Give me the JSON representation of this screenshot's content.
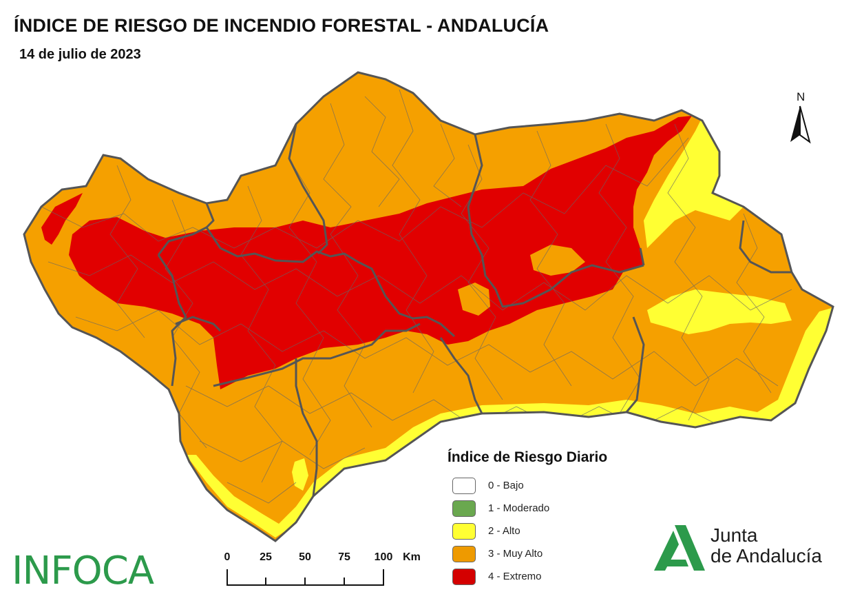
{
  "title": "ÍNDICE DE RIESGO DE INCENDIO FORESTAL - ANDALUCÍA",
  "date": "14 de julio de 2023",
  "north": {
    "letter": "N",
    "icon": "north-arrow-icon"
  },
  "legend": {
    "title": "Índice de Riesgo Diario",
    "items": [
      {
        "label": "0 - Bajo",
        "color": "#ffffff"
      },
      {
        "label": "1 - Moderado",
        "color": "#6aa84f"
      },
      {
        "label": "2 - Alto",
        "color": "#ffff33"
      },
      {
        "label": "3 - Muy Alto",
        "color": "#ee9a00"
      },
      {
        "label": "4 - Extremo",
        "color": "#d40000"
      }
    ]
  },
  "map_colors": {
    "alto": "#ffff33",
    "muy_alto": "#f5a000",
    "extremo": "#e10000",
    "borders": "#555555"
  },
  "scale": {
    "labels": [
      "0",
      "25",
      "50",
      "75",
      "100"
    ],
    "unit": "Km"
  },
  "logos": {
    "infoca": "INFOCA",
    "infoca_color": "#2c9a4b",
    "junta_line1": "Junta",
    "junta_line2": "de Andalucía",
    "junta_color": "#2c9a4b"
  }
}
